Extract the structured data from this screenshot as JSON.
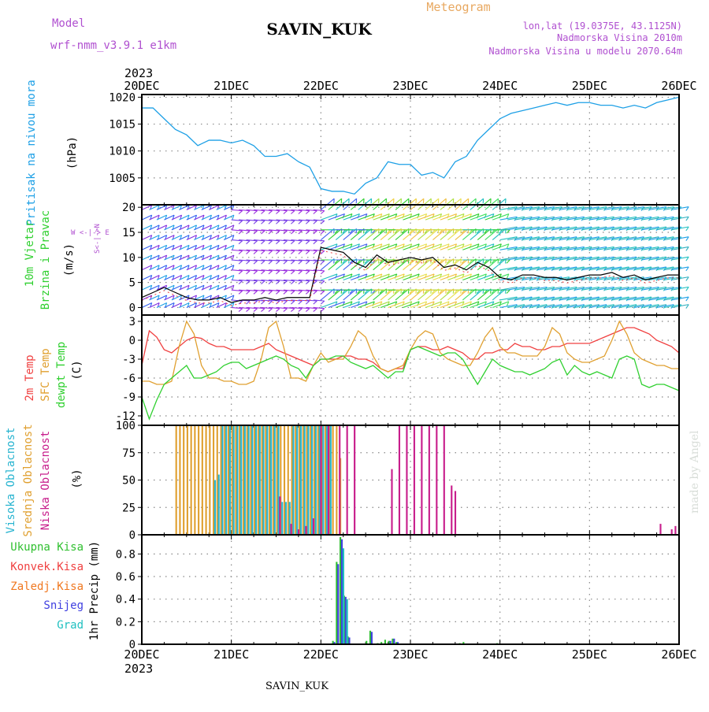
{
  "header": {
    "model_label": "Model",
    "model_name": "wrf-nmm_v3.9.1 e1km",
    "station": "SAVIN_KUK",
    "meteogram": "Meteogram",
    "lonlat": "lon,lat (19.0375E, 43.1125N)",
    "elevation": "Nadmorska Visina 2010m",
    "model_elevation": "Nadmorska Visina u modelu 2070.64m",
    "footer_station": "SAVIN_KUK",
    "credit": "made by Angel"
  },
  "time_axis": {
    "year": "2023",
    "labels": [
      "20DEC",
      "21DEC",
      "22DEC",
      "23DEC",
      "24DEC",
      "25DEC",
      "26DEC"
    ]
  },
  "colors": {
    "pressure": "#1ea0e6",
    "t2m": "#f04040",
    "sfc": "#e0a030",
    "dewpt": "#30d030",
    "high_cloud": "#28b4d0",
    "mid_cloud": "#e0a030",
    "low_cloud": "#c81e8c",
    "total_precip": "#30c030",
    "convective": "#f04040",
    "frozen": "#f07820",
    "snow": "#4040e0",
    "hail": "#20c0c0",
    "purple_text": "#b050d0",
    "orange_text": "#e8a860"
  },
  "chart_data": [
    {
      "type": "line",
      "panel": "pressure",
      "ylabel": [
        "Pritisak na nivou mora",
        "(hPa)"
      ],
      "yticks": [
        1005,
        1010,
        1015,
        1020
      ],
      "ylim": [
        1000,
        1020.5
      ],
      "xlim": [
        0,
        144
      ],
      "series": [
        {
          "color": "#1ea0e6",
          "x": [
            0,
            3,
            6,
            9,
            12,
            15,
            18,
            21,
            24,
            27,
            30,
            33,
            36,
            39,
            42,
            45,
            48,
            51,
            54,
            57,
            60,
            63,
            66,
            69,
            72,
            75,
            78,
            81,
            84,
            87,
            90,
            93,
            96,
            99,
            102,
            105,
            108,
            111,
            114,
            117,
            120,
            123,
            126,
            129,
            132,
            135,
            138,
            141,
            144
          ],
          "y": [
            1018,
            1018,
            1016,
            1014,
            1013,
            1011,
            1012,
            1012,
            1011.5,
            1012,
            1011,
            1009,
            1009,
            1009.5,
            1008,
            1007,
            1003,
            1002.5,
            1002.5,
            1002,
            1004,
            1005,
            1008,
            1007.5,
            1007.5,
            1005.5,
            1006,
            1005,
            1008,
            1009,
            1012,
            1014,
            1016,
            1017,
            1017.5,
            1018,
            1018.5,
            1019,
            1018.5,
            1019,
            1019,
            1018.5,
            1018.5,
            1018,
            1018.5,
            1018,
            1019,
            1019.5,
            1020
          ]
        }
      ]
    },
    {
      "type": "barbs",
      "panel": "wind",
      "ylabel": [
        "10m Vjetar",
        "Brzina i Pravac",
        "(m/s)"
      ],
      "legend": [
        "N",
        "S",
        "W",
        "E"
      ],
      "yticks": [
        0,
        5,
        10,
        15,
        20
      ],
      "ylim": [
        -1.5,
        20.5
      ],
      "xlim": [
        0,
        144
      ],
      "speed": {
        "color": "#000000",
        "x": [
          0,
          3,
          6,
          9,
          12,
          15,
          18,
          21,
          24,
          27,
          30,
          33,
          36,
          39,
          42,
          45,
          48,
          51,
          54,
          57,
          60,
          63,
          66,
          69,
          72,
          75,
          78,
          81,
          84,
          87,
          90,
          93,
          96,
          99,
          102,
          105,
          108,
          111,
          114,
          117,
          120,
          123,
          126,
          129,
          132,
          135,
          138,
          141,
          144
        ],
        "y": [
          2,
          3,
          4,
          3,
          2,
          1.5,
          1.5,
          2,
          1,
          1.5,
          1.5,
          2,
          1.5,
          2,
          2,
          2,
          12,
          11.5,
          11,
          9,
          8,
          10.5,
          9,
          9.5,
          10,
          9.5,
          10,
          8,
          8.5,
          7.5,
          9,
          8,
          6,
          5.5,
          6.5,
          6.5,
          6,
          6,
          5.5,
          6,
          6.5,
          6.5,
          7,
          6,
          6.5,
          5.5,
          6,
          6.5,
          6.5
        ]
      }
    },
    {
      "type": "line",
      "panel": "temperature",
      "ylabel": [
        "2m Temp",
        "SFC Temp",
        "dewpt Temp",
        "(C)"
      ],
      "yticks": [
        -12,
        -9,
        -6,
        -3,
        0,
        3
      ],
      "ylim": [
        -13.5,
        4
      ],
      "xlim": [
        0,
        144
      ],
      "series": [
        {
          "name": "2m Temp",
          "color": "#f04040",
          "x": [
            0,
            2,
            4,
            6,
            8,
            10,
            12,
            14,
            16,
            18,
            20,
            22,
            24,
            26,
            28,
            30,
            32,
            34,
            36,
            38,
            40,
            42,
            44,
            46,
            48,
            50,
            52,
            54,
            56,
            58,
            60,
            62,
            64,
            66,
            68,
            70,
            72,
            74,
            76,
            78,
            80,
            82,
            84,
            86,
            88,
            90,
            92,
            94,
            96,
            98,
            100,
            102,
            104,
            106,
            108,
            110,
            112,
            114,
            116,
            118,
            120,
            122,
            124,
            126,
            128,
            130,
            132,
            134,
            136,
            138,
            140,
            142,
            144
          ],
          "y": [
            -4,
            1.5,
            0.5,
            -1.5,
            -2,
            -1,
            0,
            0.5,
            0.3,
            -0.5,
            -1,
            -1,
            -1.5,
            -1.5,
            -1.5,
            -1.5,
            -1,
            -0.5,
            -1.5,
            -2,
            -2.5,
            -3,
            -3.5,
            -4,
            -3,
            -3,
            -3,
            -2.5,
            -2.5,
            -3,
            -3,
            -3.5,
            -4.5,
            -5,
            -4.5,
            -4.5,
            -1.5,
            -1,
            -1,
            -1.5,
            -1.5,
            -1,
            -1.5,
            -2,
            -3,
            -3,
            -2,
            -2,
            -1.5,
            -1.5,
            -0.5,
            -1,
            -1,
            -1.5,
            -1.5,
            -1,
            -1,
            -0.5,
            -0.5,
            -0.5,
            -0.5,
            0,
            0.5,
            1,
            1.5,
            2,
            2,
            1.5,
            1,
            0,
            -0.5,
            -1,
            -2
          ]
        },
        {
          "name": "SFC Temp",
          "color": "#e0a030",
          "x": [
            0,
            2,
            4,
            6,
            8,
            10,
            12,
            14,
            16,
            18,
            20,
            22,
            24,
            26,
            28,
            30,
            32,
            34,
            36,
            38,
            40,
            42,
            44,
            46,
            48,
            50,
            52,
            54,
            56,
            58,
            60,
            62,
            64,
            66,
            68,
            70,
            72,
            74,
            76,
            78,
            80,
            82,
            84,
            86,
            88,
            90,
            92,
            94,
            96,
            98,
            100,
            102,
            104,
            106,
            108,
            110,
            112,
            114,
            116,
            118,
            120,
            122,
            124,
            126,
            128,
            130,
            132,
            134,
            136,
            138,
            140,
            142,
            144
          ],
          "y": [
            -6.5,
            -6.5,
            -7,
            -7,
            -6.5,
            -1,
            3,
            1,
            -4,
            -6,
            -6,
            -6.5,
            -6.5,
            -7,
            -7,
            -6.5,
            -3,
            2,
            3,
            -1,
            -6,
            -6,
            -6.5,
            -4,
            -2,
            -3.5,
            -3,
            -3,
            -1,
            1.5,
            0.5,
            -2.5,
            -4.5,
            -5,
            -4.5,
            -4,
            -1.5,
            0.5,
            1.5,
            1,
            -2,
            -3,
            -3.5,
            -4,
            -4,
            -2,
            0.5,
            2,
            -1,
            -2,
            -2,
            -2.5,
            -2.5,
            -2.5,
            -1,
            2,
            1,
            -2,
            -3,
            -3.5,
            -3.5,
            -3,
            -2.5,
            0,
            3,
            1,
            -2,
            -3,
            -3.5,
            -4,
            -4,
            -4.5,
            -4.5
          ]
        },
        {
          "name": "dewpt Temp",
          "color": "#30d030",
          "x": [
            0,
            2,
            4,
            6,
            8,
            10,
            12,
            14,
            16,
            18,
            20,
            22,
            24,
            26,
            28,
            30,
            32,
            34,
            36,
            38,
            40,
            42,
            44,
            46,
            48,
            50,
            52,
            54,
            56,
            58,
            60,
            62,
            64,
            66,
            68,
            70,
            72,
            74,
            76,
            78,
            80,
            82,
            84,
            86,
            88,
            90,
            92,
            94,
            96,
            98,
            100,
            102,
            104,
            106,
            108,
            110,
            112,
            114,
            116,
            118,
            120,
            122,
            124,
            126,
            128,
            130,
            132,
            134,
            136,
            138,
            140,
            142,
            144
          ],
          "y": [
            -9,
            -12.5,
            -9.5,
            -7,
            -6,
            -5,
            -4,
            -6,
            -6,
            -5.5,
            -5,
            -4,
            -3.5,
            -3.5,
            -4.5,
            -4,
            -3.5,
            -3,
            -2.5,
            -3,
            -4,
            -4.5,
            -6,
            -4,
            -3,
            -3,
            -2.5,
            -2.5,
            -3.5,
            -4,
            -4.5,
            -4,
            -5,
            -6,
            -5,
            -5,
            -1.5,
            -1,
            -1.5,
            -2,
            -2.5,
            -2,
            -2,
            -3,
            -5,
            -7,
            -5,
            -3,
            -4,
            -4.5,
            -5,
            -5,
            -5.5,
            -5,
            -4.5,
            -3.5,
            -3,
            -5.5,
            -4,
            -5,
            -5.5,
            -5,
            -5.5,
            -6,
            -3,
            -2.5,
            -3,
            -7,
            -7.5,
            -7,
            -7,
            -7.5,
            -8
          ]
        }
      ]
    },
    {
      "type": "bar",
      "panel": "clouds",
      "ylabel": [
        "Visoka Oblacnost",
        "Srednja Oblacnost",
        "Niska Oblacnost",
        "(%)"
      ],
      "yticks": [
        0,
        25,
        50,
        75,
        100
      ],
      "ylim": [
        0,
        100
      ],
      "xlim": [
        0,
        144
      ],
      "series": [
        {
          "name": "Srednja Oblacnost",
          "color": "#e0a030",
          "x": [
            9,
            10,
            11,
            12,
            13,
            14,
            15,
            16,
            17,
            18,
            19,
            20,
            21,
            22,
            23,
            24,
            25,
            26,
            27,
            28,
            29,
            30,
            31,
            32,
            33,
            34,
            35,
            36,
            37,
            38,
            39,
            40,
            41,
            42,
            43,
            44,
            45,
            46,
            47,
            48,
            49,
            50,
            51,
            52,
            53
          ],
          "y": [
            100,
            100,
            100,
            100,
            100,
            100,
            100,
            100,
            100,
            100,
            100,
            100,
            100,
            100,
            100,
            100,
            100,
            100,
            100,
            100,
            100,
            100,
            100,
            100,
            100,
            100,
            100,
            100,
            100,
            100,
            100,
            100,
            100,
            100,
            100,
            100,
            100,
            100,
            100,
            100,
            100,
            100,
            100,
            100,
            70
          ]
        },
        {
          "name": "Visoka Oblacnost",
          "color": "#28b4d0",
          "x": [
            19,
            20,
            21,
            22,
            23,
            24,
            25,
            26,
            27,
            28,
            29,
            30,
            31,
            32,
            33,
            34,
            35,
            36,
            37,
            38,
            39,
            40,
            41,
            42,
            43,
            44,
            45,
            46,
            47,
            48,
            49,
            50
          ],
          "y": [
            50,
            55,
            100,
            100,
            100,
            100,
            100,
            100,
            100,
            100,
            100,
            100,
            100,
            100,
            100,
            100,
            100,
            100,
            30,
            30,
            30,
            100,
            100,
            100,
            100,
            100,
            100,
            100,
            100,
            100,
            100,
            100
          ]
        },
        {
          "name": "Niska Oblacnost",
          "color": "#c81e8c",
          "x": [
            36,
            39,
            41,
            43,
            45,
            47,
            49,
            52,
            54,
            56,
            66,
            68,
            70,
            72,
            74,
            76,
            78,
            80,
            82,
            83,
            138,
            141,
            142
          ],
          "y": [
            35,
            10,
            5,
            8,
            15,
            100,
            100,
            100,
            100,
            100,
            60,
            100,
            100,
            100,
            100,
            100,
            100,
            100,
            45,
            40,
            10,
            5,
            8
          ]
        }
      ]
    },
    {
      "type": "bar",
      "panel": "precip",
      "ylabel": [
        "1hr Precip (mm)"
      ],
      "legend": [
        "Ukupna Kisa",
        "Konvek.Kisa",
        "Zaledj.Kisa",
        "Snijeg",
        "Grad"
      ],
      "yticks": [
        0,
        0.2,
        0.4,
        0.6,
        0.8
      ],
      "ylim": [
        0,
        0.97
      ],
      "xlim": [
        0,
        144
      ],
      "series": [
        {
          "name": "Ukupna Kisa",
          "color": "#30c030",
          "x": [
            51,
            52,
            53,
            54,
            55,
            60,
            61,
            63,
            64,
            65,
            66,
            67,
            68,
            85,
            86,
            95
          ],
          "y": [
            0.03,
            0.73,
            0.95,
            0.43,
            0.07,
            0.03,
            0.12,
            0.01,
            0.02,
            0.04,
            0.03,
            0.05,
            0.02,
            0.01,
            0.02,
            0.01
          ]
        },
        {
          "name": "Snijeg",
          "color": "#4040e0",
          "x": [
            51,
            52,
            53,
            54,
            55,
            61,
            66,
            67,
            68
          ],
          "y": [
            0.02,
            0.71,
            0.93,
            0.42,
            0.06,
            0.11,
            0.03,
            0.05,
            0.02
          ]
        },
        {
          "name": "Grad",
          "color": "#20c0c0",
          "x": [
            53,
            54
          ],
          "y": [
            0.85,
            0.4
          ]
        }
      ]
    }
  ]
}
